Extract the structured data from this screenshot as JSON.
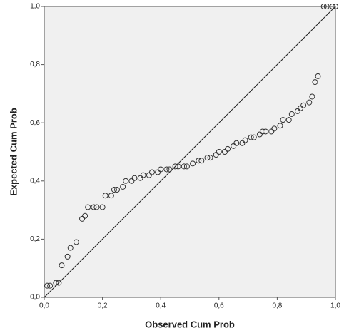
{
  "chart_data": {
    "type": "scatter",
    "x_label": "Observed Cum Prob",
    "y_label": "Expected Cum Prob",
    "xlim": [
      0,
      1
    ],
    "ylim": [
      0,
      1
    ],
    "xticks": [
      {
        "value": 0,
        "label": "0,0"
      },
      {
        "value": 0.2,
        "label": "0,2"
      },
      {
        "value": 0.4,
        "label": "0,4"
      },
      {
        "value": 0.6,
        "label": "0,6"
      },
      {
        "value": 0.8,
        "label": "0,8"
      },
      {
        "value": 1,
        "label": "1,0"
      }
    ],
    "yticks": [
      {
        "value": 0,
        "label": "0,0"
      },
      {
        "value": 0.2,
        "label": "0,2"
      },
      {
        "value": 0.4,
        "label": "0,4"
      },
      {
        "value": 0.6,
        "label": "0,6"
      },
      {
        "value": 0.8,
        "label": "0,8"
      },
      {
        "value": 1,
        "label": "1,0"
      }
    ],
    "reference_line": true,
    "series": [
      {
        "color": "#333333",
        "x": [
          0.01,
          0.02,
          0.04,
          0.05,
          0.06,
          0.08,
          0.09,
          0.11,
          0.13,
          0.14,
          0.15,
          0.17,
          0.18,
          0.2,
          0.21,
          0.23,
          0.24,
          0.25,
          0.27,
          0.28,
          0.3,
          0.31,
          0.33,
          0.34,
          0.36,
          0.37,
          0.39,
          0.4,
          0.42,
          0.43,
          0.45,
          0.46,
          0.48,
          0.49,
          0.51,
          0.53,
          0.54,
          0.56,
          0.57,
          0.59,
          0.6,
          0.62,
          0.63,
          0.65,
          0.66,
          0.68,
          0.69,
          0.71,
          0.72,
          0.74,
          0.75,
          0.76,
          0.78,
          0.79,
          0.81,
          0.82,
          0.84,
          0.85,
          0.87,
          0.88,
          0.89,
          0.91,
          0.92,
          0.93,
          0.94,
          0.96,
          0.97,
          0.99,
          1.0
        ],
        "values": [
          0.04,
          0.04,
          0.05,
          0.05,
          0.11,
          0.14,
          0.17,
          0.19,
          0.27,
          0.28,
          0.31,
          0.31,
          0.31,
          0.31,
          0.35,
          0.35,
          0.37,
          0.37,
          0.38,
          0.4,
          0.4,
          0.41,
          0.41,
          0.42,
          0.42,
          0.43,
          0.43,
          0.44,
          0.44,
          0.44,
          0.45,
          0.45,
          0.45,
          0.45,
          0.46,
          0.47,
          0.47,
          0.48,
          0.48,
          0.49,
          0.5,
          0.5,
          0.51,
          0.52,
          0.53,
          0.53,
          0.54,
          0.55,
          0.55,
          0.56,
          0.57,
          0.57,
          0.57,
          0.58,
          0.59,
          0.61,
          0.61,
          0.63,
          0.64,
          0.65,
          0.66,
          0.67,
          0.69,
          0.74,
          0.76,
          1.0,
          1.0,
          1.0,
          1.0
        ]
      }
    ]
  }
}
